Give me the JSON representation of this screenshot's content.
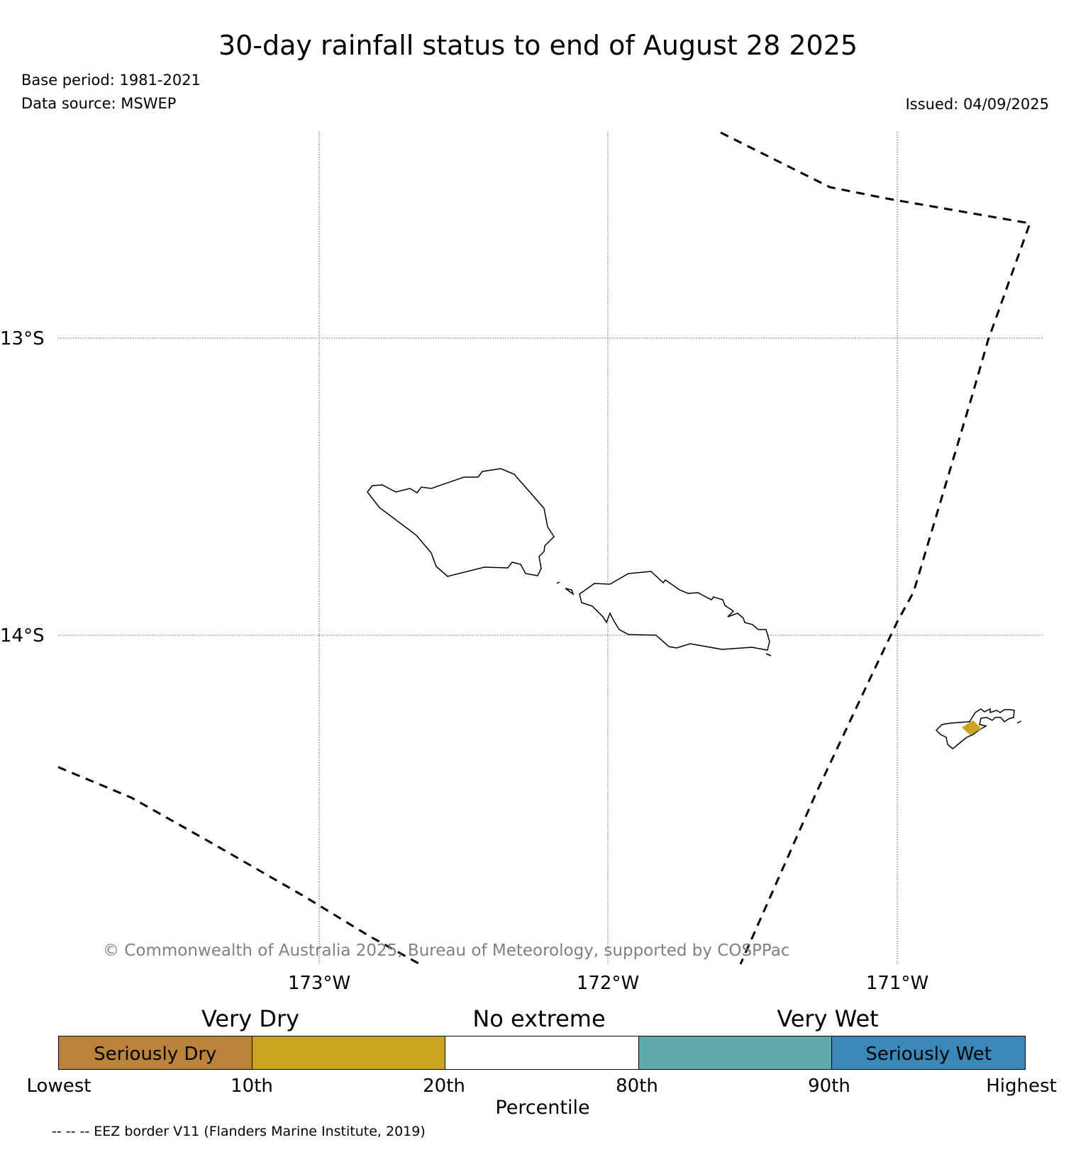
{
  "title": "30-day rainfall status to end of August 28 2025",
  "base_period": "Base period: 1981-2021",
  "data_source": "Data source: MSWEP",
  "issued": "Issued: 04/09/2025",
  "map": {
    "lat_labels": [
      "13°S",
      "14°S"
    ],
    "lon_labels": [
      "173°W",
      "172°W",
      "171°W"
    ],
    "extent": {
      "lon_min": -173.9,
      "lon_max": -170.5,
      "lat_min": -15.1,
      "lat_max": -12.3
    },
    "highlight_color": "#c9a51f"
  },
  "copyright": "© Commonwealth of Australia 2025, Bureau of Meteorology, supported by COSPPac",
  "legend": {
    "category_labels": [
      "Very Dry",
      "No extreme",
      "Very Wet"
    ],
    "segments": [
      {
        "label": "Seriously Dry",
        "color": "#bb823c"
      },
      {
        "label": "",
        "color": "#c7a61e"
      },
      {
        "label": "",
        "color": "#ffffff"
      },
      {
        "label": "",
        "color": "#5eaaad"
      },
      {
        "label": "Seriously Wet",
        "color": "#3a87b9"
      }
    ],
    "ticks": [
      "Lowest",
      "10th",
      "20th",
      "80th",
      "90th",
      "Highest"
    ],
    "axis_label": "Percentile"
  },
  "eez_note": "-- -- -- EEZ border V11 (Flanders Marine Institute, 2019)"
}
